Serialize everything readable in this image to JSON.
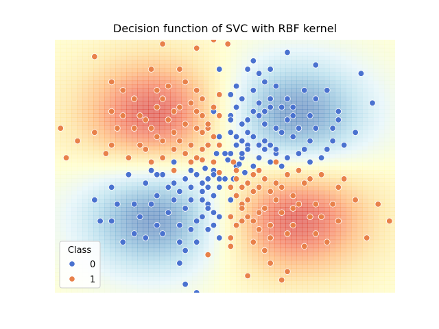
{
  "chart_data": {
    "type": "scatter",
    "title": "Decision function of SVC with RBF kernel",
    "xlabel": "",
    "ylabel": "",
    "xlim": [
      -3,
      3
    ],
    "ylim": [
      -3,
      3
    ],
    "grid": false,
    "background": "decision-function heatmap (RdYlBu colormap)",
    "legend": {
      "title": "Class",
      "placement": "lower-left",
      "entries": [
        {
          "label": "0",
          "color": "#4a72cf"
        },
        {
          "label": "1",
          "color": "#e8814a"
        }
      ]
    },
    "series": [
      {
        "name": "0",
        "color": "#4a72cf",
        "points": [
          [
            -0.6,
            -1.5
          ],
          [
            -0.4,
            -1.2
          ],
          [
            -0.8,
            -0.6
          ],
          [
            -1.2,
            -1.4
          ],
          [
            -1.6,
            -0.9
          ],
          [
            -2.0,
            -0.5
          ],
          [
            -1.1,
            -0.2
          ],
          [
            -0.9,
            -0.8
          ],
          [
            -0.3,
            -0.5
          ],
          [
            -0.2,
            -0.1
          ],
          [
            -0.7,
            -0.3
          ],
          [
            -1.4,
            -0.4
          ],
          [
            -1.8,
            -1.8
          ],
          [
            -0.5,
            -1.8
          ],
          [
            -0.2,
            -1.4
          ],
          [
            -0.4,
            -0.8
          ],
          [
            -1.0,
            -1.1
          ],
          [
            -1.3,
            -0.1
          ],
          [
            -0.9,
            0.1
          ],
          [
            -0.5,
            -0.2
          ],
          [
            -0.1,
            -0.5
          ],
          [
            -0.3,
            -0.9
          ],
          [
            -0.6,
            -0.1
          ],
          [
            -1.7,
            -0.2
          ],
          [
            -2.3,
            -0.8
          ],
          [
            -0.8,
            -2.3
          ],
          [
            -0.1,
            -1.7
          ],
          [
            0.1,
            -0.8
          ],
          [
            -0.2,
            -0.2
          ],
          [
            -1.5,
            -1.2
          ],
          [
            -1.2,
            -0.7
          ],
          [
            -0.4,
            -0.4
          ],
          [
            -0.7,
            -1.0
          ],
          [
            -1.9,
            -0.9
          ],
          [
            -2.0,
            -1.3
          ],
          [
            -1.1,
            -1.6
          ],
          [
            -0.6,
            -0.5
          ],
          [
            -0.3,
            -1.0
          ],
          [
            -0.1,
            -0.3
          ],
          [
            -0.5,
            -1.3
          ],
          [
            -0.8,
            -1.4
          ],
          [
            -1.3,
            -0.9
          ],
          [
            -0.4,
            -0.6
          ],
          [
            -0.2,
            -0.7
          ],
          [
            -0.9,
            -0.4
          ],
          [
            -0.1,
            -1.2
          ],
          [
            0.0,
            -0.3
          ],
          [
            -0.3,
            -0.3
          ],
          [
            -1.6,
            -1.6
          ],
          [
            -0.7,
            -2.0
          ],
          [
            -0.5,
            -3.0
          ],
          [
            -0.7,
            -2.8
          ],
          [
            -0.8,
            -1.8
          ],
          [
            -1.4,
            -1.7
          ],
          [
            -2.2,
            -1.3
          ],
          [
            -0.3,
            -1.5
          ],
          [
            -1.0,
            -0.5
          ],
          [
            -0.6,
            -0.8
          ],
          [
            -0.2,
            -1.1
          ],
          [
            -1.2,
            -0.2
          ],
          [
            0.6,
            1.2
          ],
          [
            0.4,
            0.5
          ],
          [
            0.8,
            1.6
          ],
          [
            1.2,
            1.4
          ],
          [
            1.6,
            0.9
          ],
          [
            1.0,
            0.8
          ],
          [
            0.3,
            0.2
          ],
          [
            0.2,
            0.0
          ],
          [
            0.7,
            0.4
          ],
          [
            1.4,
            0.4
          ],
          [
            0.9,
            0.3
          ],
          [
            1.3,
            0.9
          ],
          [
            1.8,
            1.8
          ],
          [
            1.1,
            1.1
          ],
          [
            0.5,
            1.8
          ],
          [
            0.2,
            1.4
          ],
          [
            0.4,
            0.8
          ],
          [
            1.7,
            0.2
          ],
          [
            2.3,
            0.8
          ],
          [
            0.8,
            2.3
          ],
          [
            0.1,
            1.7
          ],
          [
            0.1,
            0.8
          ],
          [
            1.5,
            1.2
          ],
          [
            1.2,
            0.7
          ],
          [
            0.4,
            0.4
          ],
          [
            0.7,
            1.0
          ],
          [
            1.9,
            0.9
          ],
          [
            2.0,
            1.3
          ],
          [
            1.1,
            1.6
          ],
          [
            0.6,
            0.5
          ],
          [
            0.3,
            1.0
          ],
          [
            0.1,
            0.3
          ],
          [
            0.5,
            1.3
          ],
          [
            0.8,
            1.4
          ],
          [
            1.3,
            0.9
          ],
          [
            0.2,
            0.7
          ],
          [
            0.9,
            0.4
          ],
          [
            0.1,
            1.2
          ],
          [
            0.0,
            0.3
          ],
          [
            0.3,
            0.3
          ],
          [
            1.6,
            1.6
          ],
          [
            0.7,
            2.0
          ],
          [
            0.5,
            2.5
          ],
          [
            0.4,
            2.3
          ],
          [
            1.1,
            2.7
          ],
          [
            1.6,
            2.4
          ],
          [
            2.4,
            2.2
          ],
          [
            2.6,
            1.5
          ],
          [
            1.9,
            0.6
          ],
          [
            1.5,
            0.1
          ],
          [
            1.0,
            0.0
          ],
          [
            0.6,
            0.2
          ],
          [
            0.3,
            0.6
          ],
          [
            0.4,
            1.1
          ],
          [
            0.2,
            1.9
          ],
          [
            0.6,
            2.2
          ],
          [
            0.9,
            1.9
          ],
          [
            1.4,
            1.8
          ],
          [
            1.3,
            0.3
          ],
          [
            0.8,
            0.1
          ],
          [
            2.0,
            1.1
          ],
          [
            1.8,
            0.4
          ],
          [
            2.1,
            0.5
          ],
          [
            1.2,
            1.2
          ],
          [
            0.9,
            0.9
          ],
          [
            0.5,
            0.7
          ],
          [
            0.6,
            1.5
          ],
          [
            0.3,
            1.6
          ],
          [
            1.0,
            1.4
          ],
          [
            0.7,
            0.6
          ],
          [
            0.5,
            0.0
          ],
          [
            0.2,
            0.5
          ],
          [
            -0.1,
            0.7
          ],
          [
            -0.2,
            1.3
          ],
          [
            -0.1,
            2.3
          ],
          [
            0.1,
            1.1
          ],
          [
            0.8,
            0.5
          ],
          [
            1.1,
            0.2
          ],
          [
            1.5,
            0.6
          ],
          [
            0.7,
            1.3
          ],
          [
            0.15,
            -0.3
          ],
          [
            -0.15,
            0.3
          ],
          [
            0.35,
            -0.15
          ],
          [
            -0.35,
            -0.05
          ],
          [
            0.05,
            0.15
          ],
          [
            0.25,
            0.05
          ]
        ]
      },
      {
        "name": "1",
        "color": "#e8814a",
        "points": [
          [
            -0.6,
            1.5
          ],
          [
            -0.4,
            1.2
          ],
          [
            -0.8,
            0.6
          ],
          [
            -1.2,
            1.4
          ],
          [
            -1.6,
            0.9
          ],
          [
            -2.0,
            0.5
          ],
          [
            -1.1,
            0.2
          ],
          [
            -0.9,
            0.8
          ],
          [
            -0.3,
            0.5
          ],
          [
            -0.2,
            0.1
          ],
          [
            -0.7,
            0.3
          ],
          [
            -1.4,
            0.4
          ],
          [
            -1.8,
            1.8
          ],
          [
            -0.5,
            1.8
          ],
          [
            -0.2,
            1.4
          ],
          [
            -0.4,
            0.8
          ],
          [
            -1.0,
            1.1
          ],
          [
            -1.3,
            0.1
          ],
          [
            -0.9,
            -0.1
          ],
          [
            -0.5,
            0.2
          ],
          [
            -0.1,
            0.5
          ],
          [
            -0.3,
            0.9
          ],
          [
            -0.6,
            0.1
          ],
          [
            -1.7,
            0.2
          ],
          [
            -2.3,
            0.8
          ],
          [
            -0.8,
            2.3
          ],
          [
            -0.1,
            1.7
          ],
          [
            -1.5,
            1.2
          ],
          [
            -1.2,
            0.7
          ],
          [
            -0.4,
            0.4
          ],
          [
            -0.7,
            1.0
          ],
          [
            -1.9,
            0.9
          ],
          [
            -2.0,
            1.3
          ],
          [
            -1.1,
            1.6
          ],
          [
            -0.6,
            0.5
          ],
          [
            -0.3,
            1.0
          ],
          [
            -0.5,
            1.3
          ],
          [
            -0.8,
            1.4
          ],
          [
            -1.3,
            0.9
          ],
          [
            -0.2,
            0.7
          ],
          [
            -0.9,
            0.4
          ],
          [
            -0.1,
            1.2
          ],
          [
            -1.6,
            1.6
          ],
          [
            -0.7,
            2.0
          ],
          [
            -2.3,
            2.6
          ],
          [
            -1.3,
            2.3
          ],
          [
            -2.0,
            2.0
          ],
          [
            -2.9,
            0.9
          ],
          [
            -2.8,
            0.2
          ],
          [
            -2.6,
            0.6
          ],
          [
            -1.0,
            1.9
          ],
          [
            -1.4,
            1.1
          ],
          [
            -0.5,
            0.9
          ],
          [
            -1.1,
            0.6
          ],
          [
            -2.1,
            0.3
          ],
          [
            -1.5,
            0.5
          ],
          [
            -1.8,
            1.2
          ],
          [
            -0.4,
            1.6
          ],
          [
            -1.2,
            1.8
          ],
          [
            -0.9,
            1.3
          ],
          [
            0.6,
            -1.5
          ],
          [
            0.4,
            -1.2
          ],
          [
            0.8,
            -0.6
          ],
          [
            1.2,
            -1.4
          ],
          [
            1.6,
            -0.9
          ],
          [
            2.0,
            -0.5
          ],
          [
            1.1,
            -0.2
          ],
          [
            0.9,
            -0.8
          ],
          [
            0.3,
            -0.5
          ],
          [
            0.2,
            -0.1
          ],
          [
            0.7,
            -0.3
          ],
          [
            1.4,
            -0.4
          ],
          [
            1.8,
            -1.8
          ],
          [
            0.5,
            -1.8
          ],
          [
            0.2,
            -1.4
          ],
          [
            0.4,
            -0.8
          ],
          [
            1.0,
            -1.1
          ],
          [
            1.3,
            -0.1
          ],
          [
            0.9,
            0.1
          ],
          [
            0.5,
            -0.2
          ],
          [
            0.1,
            -0.5
          ],
          [
            0.3,
            -0.9
          ],
          [
            0.6,
            -0.1
          ],
          [
            1.7,
            -0.2
          ],
          [
            2.3,
            -0.8
          ],
          [
            0.8,
            -2.3
          ],
          [
            0.1,
            -1.7
          ],
          [
            1.5,
            -1.2
          ],
          [
            1.2,
            -0.7
          ],
          [
            0.4,
            -0.4
          ],
          [
            0.7,
            -1.0
          ],
          [
            1.9,
            -0.9
          ],
          [
            2.0,
            -1.3
          ],
          [
            1.1,
            -1.6
          ],
          [
            0.6,
            -0.5
          ],
          [
            0.3,
            -1.0
          ],
          [
            0.5,
            -1.3
          ],
          [
            0.8,
            -1.4
          ],
          [
            1.3,
            -0.9
          ],
          [
            0.2,
            -0.7
          ],
          [
            0.9,
            -0.4
          ],
          [
            0.1,
            -1.2
          ],
          [
            1.6,
            -1.6
          ],
          [
            0.7,
            -2.0
          ],
          [
            1.0,
            -2.7
          ],
          [
            1.1,
            -2.5
          ],
          [
            0.4,
            -2.6
          ],
          [
            2.7,
            -0.9
          ],
          [
            2.5,
            -1.7
          ],
          [
            2.9,
            -1.3
          ],
          [
            2.1,
            -0.3
          ],
          [
            1.5,
            -0.3
          ],
          [
            0.5,
            -0.6
          ],
          [
            1.0,
            -0.5
          ],
          [
            1.4,
            -1.9
          ],
          [
            0.6,
            -1.1
          ],
          [
            1.2,
            -1.0
          ],
          [
            0.3,
            -1.3
          ],
          [
            0.8,
            -1.7
          ],
          [
            1.7,
            -1.2
          ],
          [
            -0.5,
            2.8
          ],
          [
            -0.2,
            3.0
          ],
          [
            0.05,
            2.9
          ],
          [
            -1.1,
            2.9
          ],
          [
            -0.3,
            -2.1
          ],
          [
            0.1,
            -1.9
          ],
          [
            0.2,
            -0.3
          ],
          [
            -0.1,
            -0.15
          ],
          [
            -0.4,
            0.15
          ],
          [
            0.15,
            0.1
          ]
        ]
      }
    ]
  }
}
